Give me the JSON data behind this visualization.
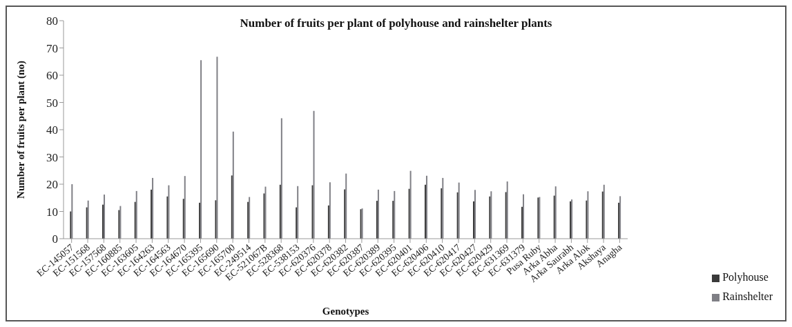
{
  "chart_data": {
    "type": "bar",
    "title": "Number of fruits per plant of polyhouse and rainshelter plants",
    "xlabel": "Genotypes",
    "ylabel": "Number of fruits per plant (no)",
    "categories": [
      "EC-145057",
      "EC-151568",
      "EC-157568",
      "EC-160885",
      "EC-163605",
      "EC-164263",
      "EC-164563",
      "EC-164670",
      "EC-165395",
      "EC-165690",
      "EC-165700",
      "EC-249514",
      "EC-521067B",
      "EC-528368",
      "EC-538153",
      "EC-620376",
      "EC-620378",
      "EC-620382",
      "EC-620387",
      "EC-620389",
      "EC-620395",
      "EC-620401",
      "EC-620406",
      "EC-620410",
      "EC-620417",
      "EC-620427",
      "EC-620429",
      "EC-631369",
      "EC-631379",
      "Pusa Ruby",
      "Arka Abha",
      "Arka Saurabh",
      "Arka Alok",
      "Akshaya",
      "Anagha"
    ],
    "series": [
      {
        "name": "Polyhouse",
        "color": "#3a3a3a",
        "values": [
          10,
          11.5,
          12.5,
          10.5,
          13.5,
          18,
          15.5,
          14.6,
          13.2,
          14.1,
          23.2,
          13.5,
          16.6,
          19.8,
          11.5,
          19.6,
          12.2,
          18.1,
          10.8,
          13.9,
          13.9,
          18.3,
          19.8,
          18.5,
          17,
          13.7,
          15.5,
          17.1,
          11.7,
          15.1,
          15.8,
          13.7,
          14,
          17.3,
          13.2
        ]
      },
      {
        "name": "Rainshelter",
        "color": "#7f7f85",
        "values": [
          20,
          14,
          16.2,
          12,
          17.5,
          22.3,
          19.6,
          23,
          65.5,
          66.8,
          39.3,
          15.3,
          19.1,
          44.2,
          19.3,
          46.9,
          20.7,
          23.9,
          11.1,
          18,
          17.5,
          24.9,
          23.1,
          22.3,
          20.6,
          17.9,
          17.4,
          21,
          16.3,
          15.3,
          19.2,
          14.4,
          17.4,
          19.8,
          15.6
        ]
      }
    ],
    "ylim": [
      0,
      80
    ],
    "yticks": [
      0,
      10,
      20,
      30,
      40,
      50,
      60,
      70,
      80
    ],
    "grid": false,
    "legend": "bottom right"
  }
}
